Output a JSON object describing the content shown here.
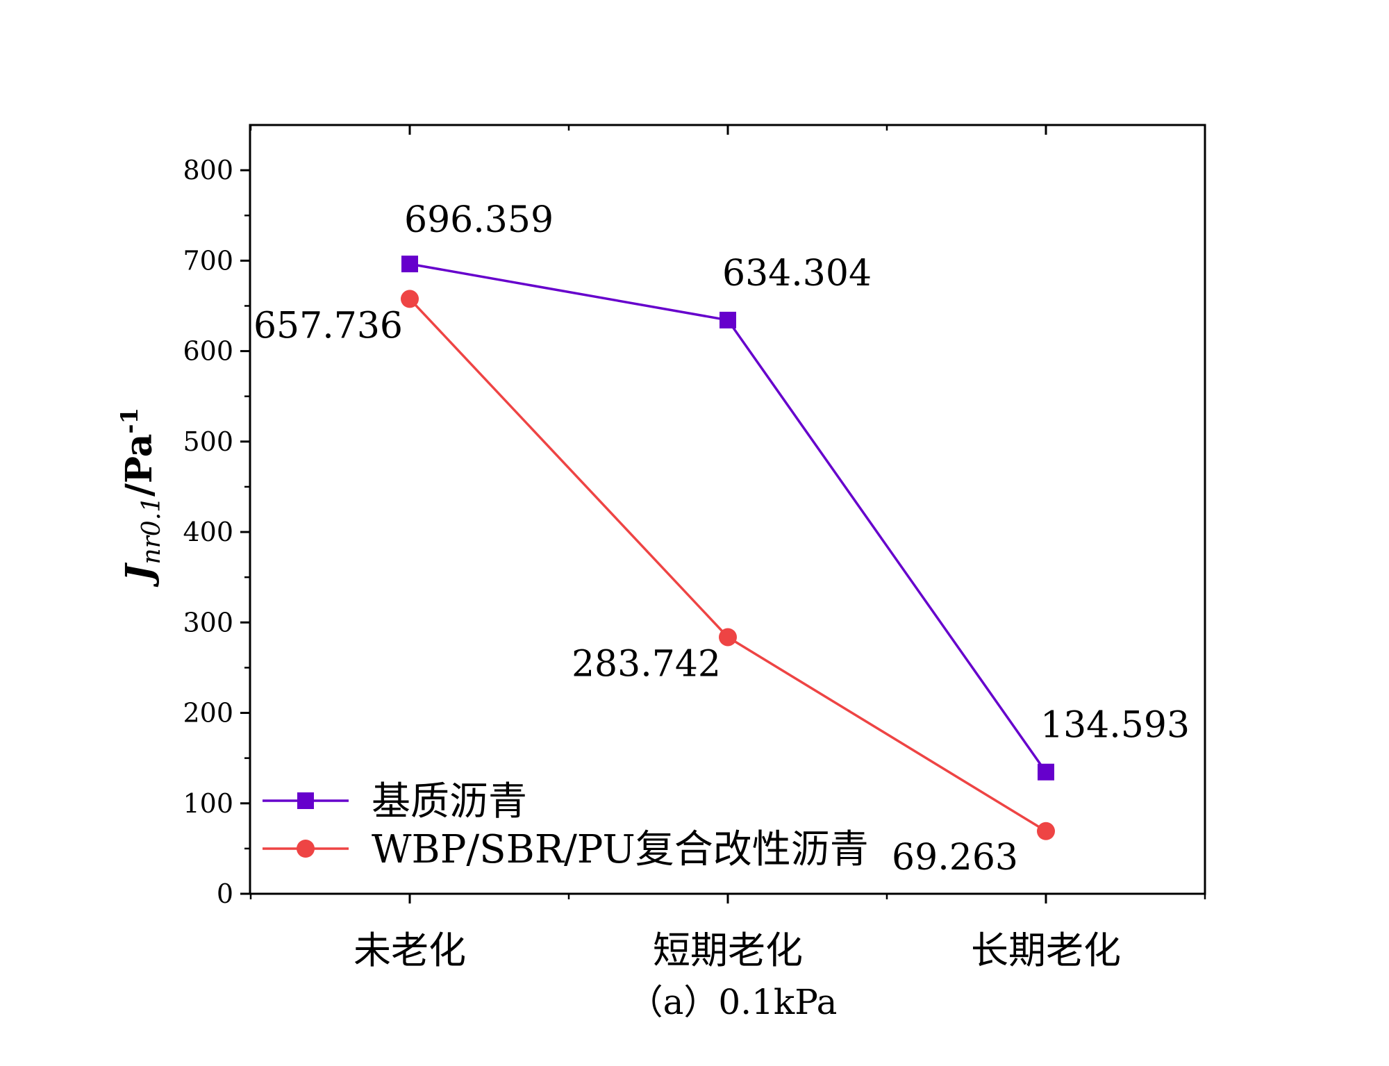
{
  "chart_data": {
    "type": "line",
    "categories": [
      "未老化",
      "短期老化",
      "长期老化"
    ],
    "ylim": [
      0,
      850
    ],
    "yticks": [
      0,
      100,
      200,
      300,
      400,
      500,
      600,
      700,
      800
    ],
    "y_minor_step": 50,
    "ylabel": {
      "main": "J",
      "sub": "nr0.1",
      "unit": "/Pa",
      "sup": "-1"
    },
    "caption": "（a）0.1kPa",
    "grid": false,
    "legend_position": "bottom-left",
    "series": [
      {
        "name": "基质沥青",
        "values": [
          696.359,
          634.304,
          134.593
        ],
        "labels": [
          "696.359",
          "634.304",
          "134.593"
        ],
        "color": "#6600cc",
        "marker": "square"
      },
      {
        "name": "WBP/SBR/PU复合改性沥青",
        "values": [
          657.736,
          283.742,
          69.263
        ],
        "labels": [
          "657.736",
          "283.742",
          "69.263"
        ],
        "color": "#ee4444",
        "marker": "circle"
      }
    ]
  }
}
